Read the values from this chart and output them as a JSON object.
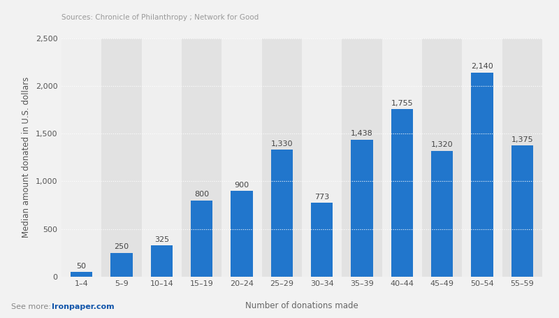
{
  "categories": [
    "1–4",
    "5–9",
    "10–14",
    "15–19",
    "20–24",
    "25–29",
    "30–34",
    "35–39",
    "40–44",
    "45–49",
    "50–54",
    "55–59"
  ],
  "values": [
    50,
    250,
    325,
    800,
    900,
    1330,
    773,
    1438,
    1755,
    1320,
    2140,
    1375
  ],
  "bar_color": "#2176CC",
  "ylabel": "Median amount donated in U.S. dollars",
  "xlabel": "Number of donations made",
  "source_text": "Sources: Chronicle of Philanthropy ; Network for Good",
  "ylim": [
    0,
    2500
  ],
  "yticks": [
    0,
    500,
    1000,
    1500,
    2000,
    2500
  ],
  "background_color": "#f2f2f2",
  "plot_bg_color": "#e8e8e8",
  "col_bg_light": "#efefef",
  "col_bg_dark": "#e2e2e2",
  "grid_color": "#ffffff",
  "label_fontsize": 8,
  "source_fontsize": 7.5,
  "footer_fontsize": 8,
  "axis_label_fontsize": 8.5,
  "tick_fontsize": 8
}
